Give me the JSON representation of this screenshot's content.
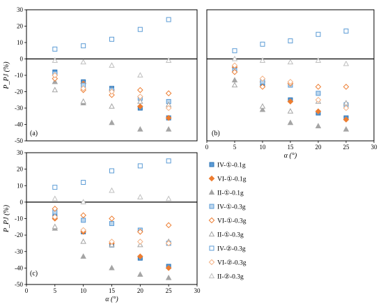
{
  "legend": {
    "title": "",
    "entries": [
      {
        "label": "IV-①-0.1g",
        "marker": "square",
        "fill": "#5b9bd5",
        "stroke": "#2e75b6",
        "filled": true
      },
      {
        "label": "VI-①-0.1g",
        "marker": "diamond",
        "fill": "#ed7d31",
        "stroke": "#ed7d31",
        "filled": true
      },
      {
        "label": "II-①-0.1g",
        "marker": "triangle",
        "fill": "#a5a5a5",
        "stroke": "#a5a5a5",
        "filled": true
      },
      {
        "label": "IV-①-0.3g",
        "marker": "square",
        "fill": "#bdd7ee",
        "stroke": "#5b9bd5",
        "filled": true
      },
      {
        "label": "VI-①-0.3g",
        "marker": "diamond",
        "fill": "#ffffff",
        "stroke": "#ed7d31",
        "filled": false
      },
      {
        "label": "II-①-0.3g",
        "marker": "triangle",
        "fill": "#ffffff",
        "stroke": "#a5a5a5",
        "filled": false
      },
      {
        "label": "IV-②-0.3g",
        "marker": "square",
        "fill": "#ffffff",
        "stroke": "#5b9bd5",
        "filled": false
      },
      {
        "label": "VI-②-0.3g",
        "marker": "diamond",
        "fill": "#ffffff",
        "stroke": "#f4b183",
        "filled": false
      },
      {
        "label": "II-②-0.3g",
        "marker": "triangle",
        "fill": "#ffffff",
        "stroke": "#bfbfbf",
        "filled": false
      }
    ]
  },
  "chart_data": [
    {
      "type": "scatter",
      "panel_label": "(a)",
      "xlabel": "",
      "ylabel": "P_PJ (%)",
      "xlim": [
        0,
        30
      ],
      "ylim": [
        -50,
        30
      ],
      "x_ticks": [],
      "y_ticks": [
        30,
        20,
        10,
        0,
        -10,
        -20,
        -30,
        -40,
        -50
      ],
      "x": [
        5,
        10,
        15,
        20,
        25
      ],
      "series": [
        {
          "name": "IV-①-0.1g",
          "values": [
            -8,
            -14,
            -18,
            -30,
            -36
          ]
        },
        {
          "name": "VI-①-0.1g",
          "values": [
            -10,
            -15,
            -19,
            -29,
            -36
          ]
        },
        {
          "name": "II-①-0.1g",
          "values": [
            -14,
            -27,
            -39,
            -43,
            -43
          ]
        },
        {
          "name": "IV-①-0.3g",
          "values": [
            -9,
            -16,
            -19,
            -24,
            -26
          ]
        },
        {
          "name": "VI-①-0.3g",
          "values": [
            -12,
            -19,
            -22,
            -19,
            -21
          ]
        },
        {
          "name": "II-①-0.3g",
          "values": [
            -19,
            -26,
            -29,
            -26,
            -28
          ]
        },
        {
          "name": "IV-②-0.3g",
          "values": [
            6,
            8,
            12,
            18,
            24
          ]
        },
        {
          "name": "VI-②-0.3g",
          "values": [
            -10,
            -18,
            -20,
            -23,
            -30
          ]
        },
        {
          "name": "II-②-0.3g",
          "values": [
            -1,
            -2,
            -4,
            -10,
            -1
          ]
        }
      ]
    },
    {
      "type": "scatter",
      "panel_label": "(b)",
      "xlabel": "α (°)",
      "ylabel": "",
      "xlim": [
        0,
        30
      ],
      "ylim": [
        -50,
        30
      ],
      "x_ticks": [
        0,
        5,
        10,
        15,
        20,
        25,
        30
      ],
      "y_ticks": [],
      "x": [
        5,
        10,
        15,
        20,
        25
      ],
      "series": [
        {
          "name": "IV-①-0.1g",
          "values": [
            -6,
            -15,
            -25,
            -33,
            -36
          ]
        },
        {
          "name": "VI-①-0.1g",
          "values": [
            -5,
            -14,
            -26,
            -32,
            -37
          ]
        },
        {
          "name": "II-①-0.1g",
          "values": [
            -13,
            -31,
            -39,
            -41,
            -43
          ]
        },
        {
          "name": "IV-①-0.3g",
          "values": [
            -7,
            -14,
            -16,
            -21,
            -28
          ]
        },
        {
          "name": "VI-①-0.3g",
          "values": [
            -8,
            -17,
            -15,
            -17,
            -17
          ]
        },
        {
          "name": "II-①-0.3g",
          "values": [
            -16,
            -29,
            -32,
            -26,
            -27
          ]
        },
        {
          "name": "IV-②-0.3g",
          "values": [
            5,
            9,
            11,
            15,
            17
          ]
        },
        {
          "name": "VI-②-0.3g",
          "values": [
            -4,
            -12,
            -14,
            -25,
            -30
          ]
        },
        {
          "name": "II-②-0.3g",
          "values": [
            0,
            -1,
            -2,
            -1,
            -3
          ]
        }
      ]
    },
    {
      "type": "scatter",
      "panel_label": "(c)",
      "xlabel": "α (°)",
      "ylabel": "P_PJ (%)",
      "xlim": [
        0,
        30
      ],
      "ylim": [
        -50,
        30
      ],
      "x_ticks": [
        0,
        5,
        10,
        15,
        20,
        25,
        30
      ],
      "y_ticks": [
        30,
        20,
        10,
        0,
        -10,
        -20,
        -30,
        -40,
        -50
      ],
      "x": [
        5,
        10,
        15,
        20,
        25
      ],
      "series": [
        {
          "name": "IV-①-0.1g",
          "values": [
            -9,
            -18,
            -26,
            -34,
            -39
          ]
        },
        {
          "name": "VI-①-0.1g",
          "values": [
            -10,
            -18,
            -25,
            -33,
            -40
          ]
        },
        {
          "name": "II-①-0.1g",
          "values": [
            -16,
            -33,
            -40,
            -44,
            -46
          ]
        },
        {
          "name": "IV-①-0.3g",
          "values": [
            -6,
            -11,
            -13,
            -17,
            -25
          ]
        },
        {
          "name": "VI-①-0.3g",
          "values": [
            -4,
            -8,
            -10,
            -18,
            -14
          ]
        },
        {
          "name": "II-①-0.3g",
          "values": [
            -15,
            -24,
            -26,
            -26,
            -24
          ]
        },
        {
          "name": "IV-②-0.3g",
          "values": [
            9,
            12,
            19,
            22,
            25
          ]
        },
        {
          "name": "VI-②-0.3g",
          "values": [
            -9,
            -17,
            -24,
            -24,
            -25
          ]
        },
        {
          "name": "II-②-0.3g",
          "values": [
            2,
            0,
            7,
            3,
            2
          ]
        }
      ]
    }
  ]
}
